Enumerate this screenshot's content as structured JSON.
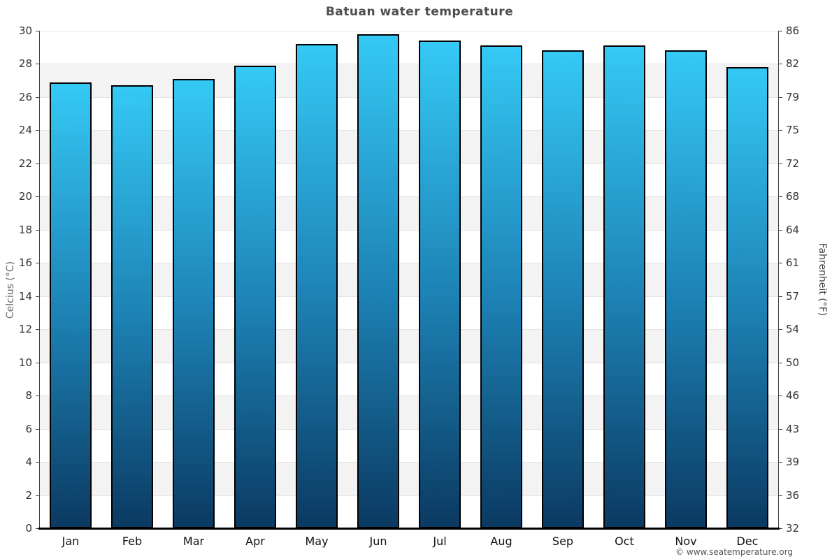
{
  "page": {
    "footer": "© www.seatemperature.org"
  },
  "chart_data": {
    "type": "bar",
    "title": "Batuan water temperature",
    "categories": [
      "Jan",
      "Feb",
      "Mar",
      "Apr",
      "May",
      "Jun",
      "Jul",
      "Aug",
      "Sep",
      "Oct",
      "Nov",
      "Dec"
    ],
    "values": [
      26.9,
      26.7,
      27.1,
      27.9,
      29.2,
      29.8,
      29.4,
      29.1,
      28.8,
      29.1,
      28.8,
      27.8
    ],
    "unit": "°C",
    "ylabel_left": "Celcius (°C)",
    "ylabel_right": "Fahrenheit (°F)",
    "xlabel": "",
    "ylim": [
      0,
      30
    ],
    "celsius_ticks": [
      30,
      28,
      26,
      24,
      22,
      20,
      18,
      16,
      14,
      12,
      10,
      8,
      6,
      4,
      2,
      0
    ],
    "fahrenheit_ticks": [
      86,
      82,
      79,
      75,
      72,
      68,
      64,
      61,
      57,
      54,
      50,
      46,
      43,
      39,
      36,
      32
    ],
    "legend": "none",
    "grid": "horizontal alternating bands every 2°C",
    "colors": {
      "bar_gradient_top": "#35c9f5",
      "bar_gradient_mid": "#1d82b5",
      "bar_gradient_bottom": "#0b3a62",
      "bar_border": "#000000",
      "band_white": "#ffffff",
      "band_gray": "#f3f3f3",
      "gridline": "#e3e3e3",
      "axis_vertical": "#444444",
      "axis_bottom": "#000000",
      "title_text": "#4d4d4d",
      "tick_text": "#333333"
    }
  }
}
